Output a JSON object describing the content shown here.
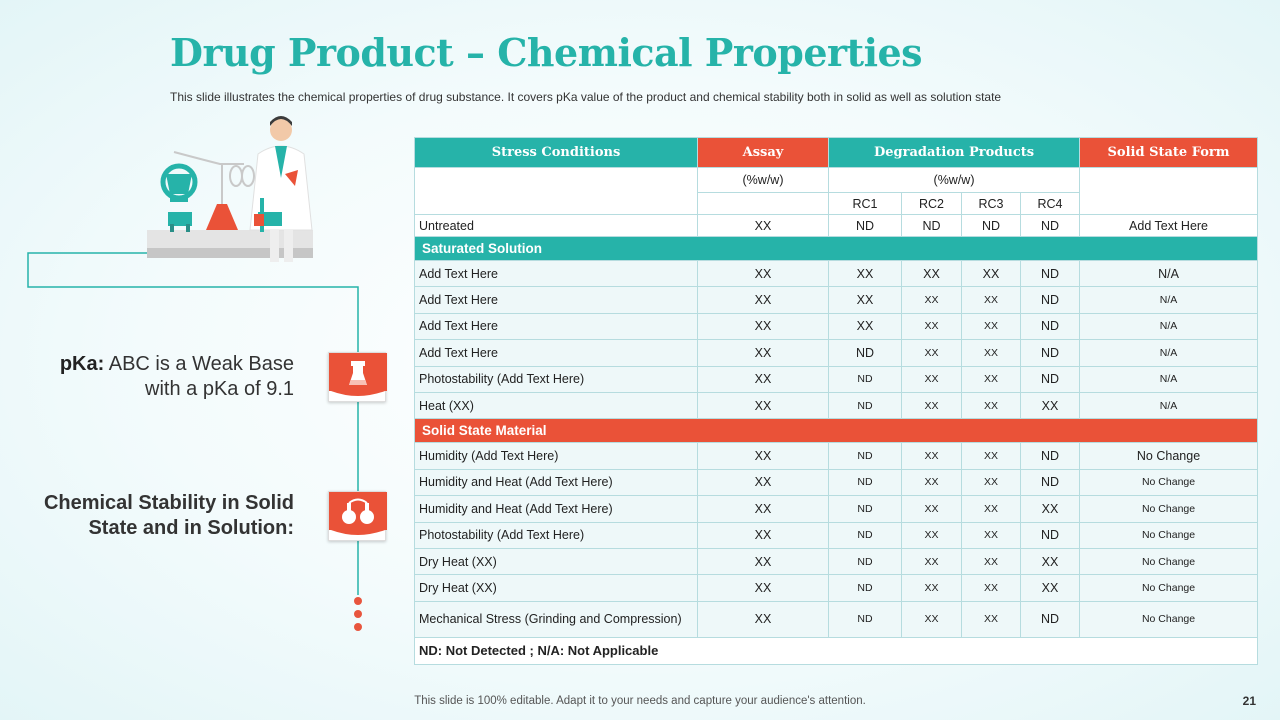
{
  "title": "Drug Product – Chemical Properties",
  "subtitle": "This slide illustrates the chemical properties of drug substance. It covers pKa value of the product and chemical stability both in solid as well as solution state",
  "left": {
    "pka_label": "pKa:",
    "pka_text": "ABC is a Weak Base with a pKa of 9.1",
    "stability_text": "Chemical Stability in Solid State and in Solution:"
  },
  "colors": {
    "teal": "#26b3a9",
    "red": "#ea5238"
  },
  "icons": [
    "scientist-illustration",
    "beaker-icon",
    "flasks-icon"
  ],
  "table": {
    "headers": {
      "stress": "Stress Conditions",
      "assay": "Assay",
      "degradation": "Degradation Products",
      "solid_form": "Solid State Form"
    },
    "units": {
      "assay": "(%w/w)",
      "degradation": "(%w/w)"
    },
    "rc": [
      "RC1",
      "RC2",
      "RC3",
      "RC4"
    ],
    "untreated": [
      "Untreated",
      "XX",
      "ND",
      "ND",
      "ND",
      "ND",
      "Add Text Here"
    ],
    "section1": "Saturated Solution",
    "rows1": [
      [
        "Add Text Here",
        "XX",
        "XX",
        "XX",
        "XX",
        "ND",
        "N/A"
      ],
      [
        "Add Text Here",
        "XX",
        "XX",
        "XX",
        "XX",
        "ND",
        "N/A"
      ],
      [
        "Add Text Here",
        "XX",
        "XX",
        "XX",
        "XX",
        "ND",
        "N/A"
      ],
      [
        "Add Text Here",
        "XX",
        "ND",
        "XX",
        "XX",
        "ND",
        "N/A"
      ],
      [
        "Photostability (Add Text Here)",
        "XX",
        "ND",
        "XX",
        "XX",
        "ND",
        "N/A"
      ],
      [
        "Heat (XX)",
        "XX",
        "ND",
        "XX",
        "XX",
        "XX",
        "N/A"
      ]
    ],
    "section2": "Solid State Material",
    "rows2": [
      [
        "Humidity (Add Text Here)",
        "XX",
        "ND",
        "XX",
        "XX",
        "ND",
        "No Change"
      ],
      [
        "Humidity and Heat (Add Text Here)",
        "XX",
        "ND",
        "XX",
        "XX",
        "ND",
        "No Change"
      ],
      [
        "Humidity and Heat (Add Text Here)",
        "XX",
        "ND",
        "XX",
        "XX",
        "XX",
        "No Change"
      ],
      [
        "Photostability (Add Text Here)",
        "XX",
        "ND",
        "XX",
        "XX",
        "ND",
        "No Change"
      ],
      [
        "Dry Heat (XX)",
        "XX",
        "ND",
        "XX",
        "XX",
        "XX",
        "No Change"
      ],
      [
        "Dry Heat (XX)",
        "XX",
        "ND",
        "XX",
        "XX",
        "XX",
        "No Change"
      ],
      [
        "Mechanical Stress (Grinding and Compression)",
        "XX",
        "ND",
        "XX",
        "XX",
        "ND",
        "No Change"
      ]
    ],
    "note": "ND: Not Detected ; N/A: Not Applicable"
  },
  "footer": "This slide is 100% editable. Adapt it to your needs and capture your audience's attention.",
  "page_number": "21"
}
